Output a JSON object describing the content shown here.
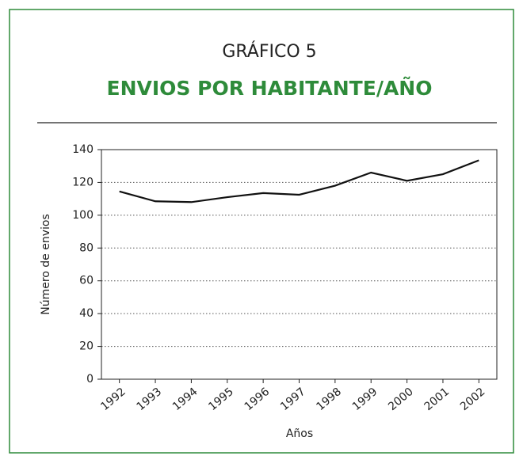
{
  "chart_data": {
    "type": "line",
    "title": "GRÁFICO 5",
    "subtitle": "ENVIOS POR HABITANTE/AÑO",
    "x_label": "Años",
    "y_label": "Número de envios",
    "x": [
      1992,
      1993,
      1994,
      1995,
      1996,
      1997,
      1998,
      1999,
      2000,
      2001,
      2002
    ],
    "series": [
      {
        "color": "#111111",
        "values": [
          114.5,
          108.5,
          108,
          111,
          113.5,
          112.5,
          118,
          126,
          121,
          125,
          133.5
        ]
      }
    ],
    "xlim": [
      1991.5,
      2002.5
    ],
    "xticks": [
      1992,
      1993,
      1994,
      1995,
      1996,
      1997,
      1998,
      1999,
      2000,
      2001,
      2002
    ],
    "ylim": [
      0,
      140
    ],
    "yticks": [
      0,
      20,
      40,
      60,
      80,
      100,
      120,
      140
    ],
    "grid": true
  }
}
